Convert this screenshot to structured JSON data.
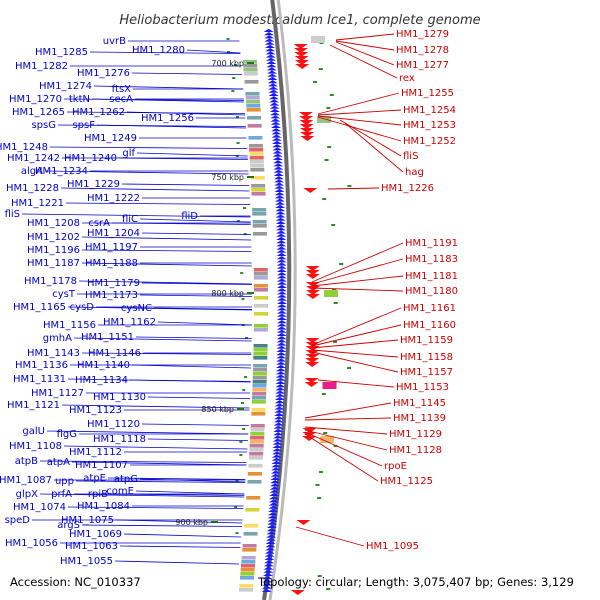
{
  "title": "Heliobacterium modesticaldum Ice1, complete genome",
  "accession": "Accession: NC_010337",
  "topology": "Topology: circular; Length: 3,075,407 bp; Genes: 3,129",
  "colors": {
    "left_labels": "#0000cc",
    "right_labels": "#cc0000",
    "backbone": "#888888",
    "kbp_tick": "#1a7a1a"
  },
  "kbp_ticks": [
    "700 kbp",
    "750 kbp",
    "800 kbp",
    "850 kbp",
    "900 kbp"
  ],
  "left_labels": [
    {
      "text": "uvrB"
    },
    {
      "text": "HM1_1285"
    },
    {
      "text": "HM1_1280"
    },
    {
      "text": "HM1_1282"
    },
    {
      "text": "HM1_1276"
    },
    {
      "text": "HM1_1274"
    },
    {
      "text": "ftsX"
    },
    {
      "text": "HM1_1270"
    },
    {
      "text": "tktN"
    },
    {
      "text": "secA"
    },
    {
      "text": "HM1_1265"
    },
    {
      "text": "HM1_1262"
    },
    {
      "text": "HM1_1256"
    },
    {
      "text": "spsG"
    },
    {
      "text": "spsF"
    },
    {
      "text": "HM1_1249"
    },
    {
      "text": "HM1_1248"
    },
    {
      "text": "glf"
    },
    {
      "text": "HM1_1242"
    },
    {
      "text": "HM1_1240"
    },
    {
      "text": "algA"
    },
    {
      "text": "HM1_1234"
    },
    {
      "text": "HM1_1229"
    },
    {
      "text": "HM1_1228"
    },
    {
      "text": "HM1_1222"
    },
    {
      "text": "HM1_1221"
    },
    {
      "text": "fliS"
    },
    {
      "text": "HM1_1208"
    },
    {
      "text": "csrA"
    },
    {
      "text": "fliC"
    },
    {
      "text": "fliD"
    },
    {
      "text": "HM1_1204"
    },
    {
      "text": "HM1_1202"
    },
    {
      "text": "HM1_1197"
    },
    {
      "text": "HM1_1196"
    },
    {
      "text": "HM1_1187"
    },
    {
      "text": "HM1_1188"
    },
    {
      "text": "HM1_1179"
    },
    {
      "text": "HM1_1178"
    },
    {
      "text": "cysT"
    },
    {
      "text": "HM1_1173"
    },
    {
      "text": "HM1_1165"
    },
    {
      "text": "cysD"
    },
    {
      "text": "cysNC"
    },
    {
      "text": "HM1_1162"
    },
    {
      "text": "HM1_1156"
    },
    {
      "text": "HM1_1151"
    },
    {
      "text": "gmhA"
    },
    {
      "text": "HM1_1146"
    },
    {
      "text": "HM1_1143"
    },
    {
      "text": "HM1_1140"
    },
    {
      "text": "HM1_1136"
    },
    {
      "text": "HM1_1134"
    },
    {
      "text": "HM1_1131"
    },
    {
      "text": "HM1_1127"
    },
    {
      "text": "HM1_1130"
    },
    {
      "text": "HM1_1121"
    },
    {
      "text": "HM1_1123"
    },
    {
      "text": "HM1_1120"
    },
    {
      "text": "galU"
    },
    {
      "text": "flgG"
    },
    {
      "text": "HM1_1118"
    },
    {
      "text": "HM1_1108"
    },
    {
      "text": "HM1_1112"
    },
    {
      "text": "atpB"
    },
    {
      "text": "atpA"
    },
    {
      "text": "HM1_1107"
    },
    {
      "text": "atpE"
    },
    {
      "text": "atpG"
    },
    {
      "text": "HM1_1087"
    },
    {
      "text": "upp"
    },
    {
      "text": "glpX"
    },
    {
      "text": "prfA"
    },
    {
      "text": "rpiB"
    },
    {
      "text": "comE"
    },
    {
      "text": "HM1_1084"
    },
    {
      "text": "HM1_1074"
    },
    {
      "text": "HM1_1075"
    },
    {
      "text": "speD"
    },
    {
      "text": "argS"
    },
    {
      "text": "HM1_1069"
    },
    {
      "text": "HM1_1056"
    },
    {
      "text": "HM1_1063"
    },
    {
      "text": "HM1_1055"
    }
  ],
  "right_labels": [
    {
      "text": "HM1_1279"
    },
    {
      "text": "HM1_1278"
    },
    {
      "text": "HM1_1277"
    },
    {
      "text": "rex"
    },
    {
      "text": "HM1_1255"
    },
    {
      "text": "HM1_1254"
    },
    {
      "text": "HM1_1253"
    },
    {
      "text": "HM1_1252"
    },
    {
      "text": "fliS"
    },
    {
      "text": "hag"
    },
    {
      "text": "HM1_1226"
    },
    {
      "text": "HM1_1191"
    },
    {
      "text": "HM1_1183"
    },
    {
      "text": "HM1_1181"
    },
    {
      "text": "HM1_1180"
    },
    {
      "text": "HM1_1161"
    },
    {
      "text": "HM1_1160"
    },
    {
      "text": "HM1_1159"
    },
    {
      "text": "HM1_1158"
    },
    {
      "text": "HM1_1157"
    },
    {
      "text": "HM1_1153"
    },
    {
      "text": "HM1_1145"
    },
    {
      "text": "HM1_1139"
    },
    {
      "text": "HM1_1129"
    },
    {
      "text": "HM1_1128"
    },
    {
      "text": "rpoE"
    },
    {
      "text": "HM1_1125"
    },
    {
      "text": "HM1_1095"
    }
  ]
}
